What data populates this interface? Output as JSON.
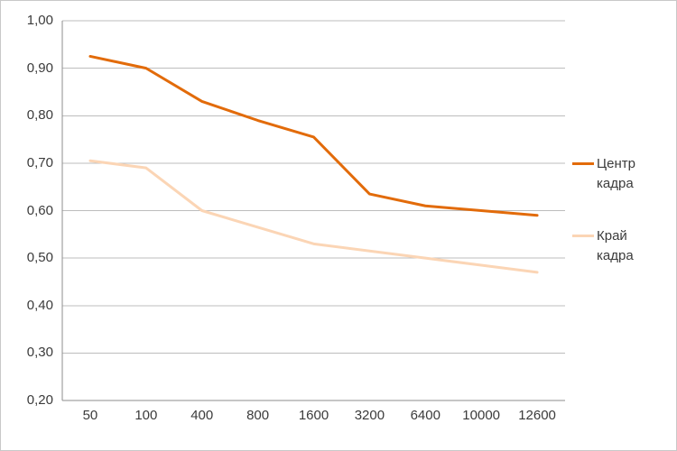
{
  "chart_data": {
    "type": "line",
    "title": "",
    "xlabel": "",
    "ylabel": "",
    "categories": [
      "50",
      "100",
      "400",
      "800",
      "1600",
      "3200",
      "6400",
      "10000",
      "12600"
    ],
    "series": [
      {
        "name": "Центр кадра",
        "color": "#E26B0A",
        "values": [
          0.925,
          0.9,
          0.83,
          0.79,
          0.755,
          0.635,
          0.61,
          0.6,
          0.59
        ]
      },
      {
        "name": "Край кадра",
        "color": "#FBD5B5",
        "values": [
          0.705,
          0.69,
          0.6,
          0.565,
          0.53,
          0.515,
          0.5,
          0.485,
          0.47
        ]
      }
    ],
    "ylim": [
      0.2,
      1.0
    ],
    "y_ticks": [
      {
        "label": "1,00",
        "value": 1.0
      },
      {
        "label": "0,90",
        "value": 0.9
      },
      {
        "label": "0,80",
        "value": 0.8
      },
      {
        "label": "0,70",
        "value": 0.7
      },
      {
        "label": "0,60",
        "value": 0.6
      },
      {
        "label": "0,50",
        "value": 0.5
      },
      {
        "label": "0,40",
        "value": 0.4
      },
      {
        "label": "0,30",
        "value": 0.3
      },
      {
        "label": "0,20",
        "value": 0.2
      }
    ],
    "grid": true,
    "legend_position": "right",
    "colors": {
      "gridline": "#bdbdbd",
      "axis": "#8e8e8e",
      "text": "#3b3b3b",
      "background": "#ffffff"
    }
  }
}
